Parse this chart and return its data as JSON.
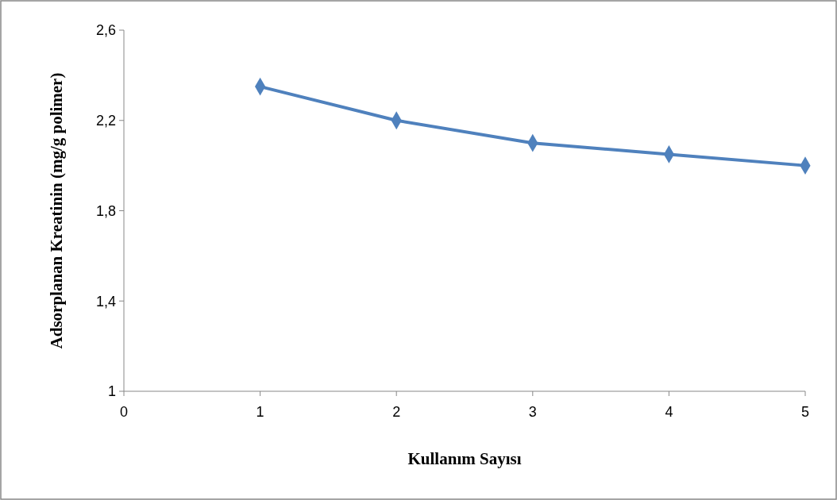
{
  "chart_data": {
    "type": "line",
    "xlabel": "Kullanım Sayısı",
    "ylabel": "Adsorplanan Kreatinin (mg/g polimer)",
    "x": [
      1,
      2,
      3,
      4,
      5
    ],
    "series": [
      {
        "color": "#4f81bd",
        "values": [
          2.35,
          2.2,
          2.1,
          2.05,
          2.0
        ]
      }
    ],
    "xlim": [
      0,
      5
    ],
    "xticks": [
      0,
      1,
      2,
      3,
      4,
      5
    ],
    "ylim": [
      1,
      2.6
    ],
    "yticks": [
      1,
      {
        "value": 1.4,
        "label": "1,4"
      },
      {
        "value": 1.8,
        "label": "1,8"
      },
      {
        "value": 2.2,
        "label": "2,2"
      },
      {
        "value": 2.6,
        "label": "2,6"
      }
    ],
    "marker": "diamond",
    "grid": false
  }
}
